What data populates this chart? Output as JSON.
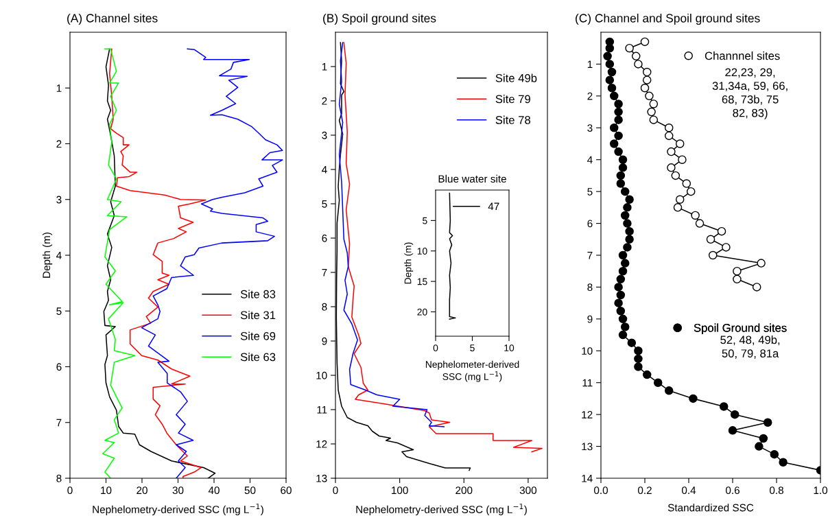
{
  "chart_data": [
    {
      "type": "line",
      "title": "(A) Channel sites",
      "xlabel": "Nephelometry-derived SSC (mg L$^{−1}$)",
      "ylabel": "Depth (m)",
      "xlim": [
        0,
        60
      ],
      "xticks": [
        0,
        10,
        20,
        30,
        40,
        50,
        60
      ],
      "ylim": [
        8,
        0
      ],
      "yticks": [
        1,
        2,
        3,
        4,
        5,
        6,
        7,
        8
      ],
      "legend": "right",
      "line_style": "solid",
      "marker": "none",
      "series": [
        {
          "name": "Site 83",
          "color": "#000000",
          "x": [
            11.0,
            10.4,
            10.0,
            10.7,
            10.4,
            11.3,
            10.4,
            11.3,
            12.3,
            12.6,
            11.3,
            12.3,
            10.4,
            11.6,
            10.4,
            11.3,
            10.4,
            10.7,
            9.4,
            9.7,
            12.6,
            10.0,
            10.4,
            9.7,
            10.0,
            11.0,
            12.9,
            13.5,
            14.8,
            18.0,
            19.3,
            22.5,
            28.2,
            37.1,
            40.3,
            38.4
          ],
          "values": [
            0.3,
            0.49,
            0.62,
            0.95,
            1.23,
            1.4,
            1.56,
            1.85,
            2.22,
            2.76,
            3.04,
            3.29,
            3.62,
            3.86,
            4.19,
            4.44,
            4.65,
            4.81,
            5.01,
            5.26,
            5.28,
            5.43,
            5.8,
            5.96,
            6.29,
            6.54,
            6.78,
            7.07,
            7.19,
            7.21,
            7.4,
            7.52,
            7.69,
            7.81,
            7.91,
            8.0
          ]
        },
        {
          "name": "Site 31",
          "color": "#ff0000",
          "x": [
            11.6,
            11.0,
            11.6,
            12.0,
            11.3,
            12.9,
            14.8,
            14.8,
            16.4,
            14.1,
            14.8,
            14.5,
            16.7,
            18.6,
            16.4,
            13.2,
            12.9,
            16.7,
            26.3,
            30.7,
            37.7,
            33.2,
            30.1,
            30.7,
            34.2,
            30.1,
            32.3,
            28.8,
            24.4,
            23.1,
            25.6,
            25.6,
            27.5,
            24.4,
            27.5,
            23.1,
            21.8,
            24.4,
            21.2,
            22.4,
            16.7,
            16.7,
            19.9,
            24.4,
            28.2,
            33.3,
            28.2,
            32.0,
            23.1,
            23.1,
            25.0,
            23.7,
            25.6,
            26.9,
            29.5,
            32.6,
            30.7,
            36.4,
            34.5,
            31.4,
            31.4
          ],
          "values": [
            0.3,
            0.74,
            1.15,
            1.56,
            1.73,
            1.81,
            1.89,
            2.02,
            2.02,
            2.14,
            2.22,
            2.38,
            2.51,
            2.51,
            2.59,
            2.61,
            2.76,
            2.84,
            2.92,
            3.0,
            3.01,
            3.08,
            3.12,
            3.33,
            3.41,
            3.52,
            3.58,
            3.7,
            3.78,
            3.99,
            4.11,
            4.32,
            4.36,
            4.44,
            4.52,
            4.65,
            4.77,
            4.93,
            5.1,
            5.22,
            5.34,
            5.59,
            5.8,
            5.88,
            6.04,
            6.17,
            6.31,
            6.31,
            6.37,
            6.58,
            6.7,
            6.86,
            7.03,
            7.19,
            7.4,
            7.6,
            7.69,
            7.81,
            7.89,
            7.97,
            8.0
          ]
        },
        {
          "name": "Site 69",
          "color": "#0000ff",
          "x": [
            32.6,
            34.5,
            37.7,
            37.1,
            49.8,
            45.4,
            44.7,
            41.5,
            49.2,
            44.1,
            46.6,
            43.4,
            46.0,
            42.2,
            39.0,
            42.2,
            46.6,
            50.4,
            52.4,
            54.3,
            57.5,
            59.0,
            55.5,
            53.3,
            59.0,
            56.2,
            57.5,
            52.4,
            53.6,
            48.5,
            42.2,
            39.6,
            36.5,
            39.6,
            39.0,
            42.2,
            53.6,
            54.9,
            51.7,
            51.7,
            56.8,
            54.9,
            42.2,
            35.8,
            34.5,
            32.0,
            30.7,
            34.3,
            28.2,
            26.9,
            23.1,
            24.4,
            25.0,
            24.4,
            19.9,
            23.7,
            21.8,
            27.5,
            24.4,
            27.0,
            27.0,
            30.7,
            32.6,
            29.5,
            32.0,
            30.1,
            34.2,
            29.5,
            32.3,
            30.1,
            32.0,
            29.5
          ],
          "values": [
            0.3,
            0.31,
            0.45,
            0.49,
            0.49,
            0.54,
            0.66,
            0.78,
            0.79,
            0.86,
            0.99,
            1.15,
            1.28,
            1.4,
            1.49,
            1.48,
            1.56,
            1.69,
            1.81,
            1.93,
            2.02,
            2.12,
            2.16,
            2.29,
            2.29,
            2.39,
            2.51,
            2.63,
            2.76,
            2.88,
            2.96,
            3.0,
            3.08,
            3.17,
            3.21,
            3.25,
            3.33,
            3.39,
            3.45,
            3.58,
            3.66,
            3.74,
            3.78,
            3.87,
            3.99,
            4.03,
            4.19,
            4.36,
            4.4,
            4.6,
            4.73,
            4.89,
            5.01,
            5.14,
            5.3,
            5.43,
            5.63,
            5.9,
            5.92,
            6.12,
            6.29,
            6.45,
            6.62,
            6.86,
            7.03,
            7.19,
            7.32,
            7.4,
            7.52,
            7.69,
            7.81,
            8.0
          ]
        },
        {
          "name": "Site 63",
          "color": "#00ff00",
          "x": [
            9.7,
            11.3,
            12.9,
            11.0,
            13.5,
            11.3,
            12.9,
            11.0,
            11.6,
            10.7,
            12.9,
            10.4,
            14.2,
            10.4,
            15.8,
            11.0,
            9.7,
            12.6,
            10.0,
            14.5,
            11.0,
            14.8,
            10.7,
            12.6,
            12.3,
            18.0,
            12.3,
            11.3,
            12.9,
            14.5,
            12.3,
            13.5,
            9.7,
            12.3,
            9.1,
            12.3,
            9.7,
            11.3
          ],
          "values": [
            0.3,
            0.3,
            0.7,
            0.91,
            0.91,
            1.15,
            1.4,
            1.65,
            1.97,
            2.38,
            2.63,
            3.0,
            3.04,
            3.29,
            3.31,
            3.54,
            4.03,
            4.28,
            4.52,
            4.83,
            4.89,
            4.85,
            5.14,
            5.51,
            5.71,
            5.8,
            5.92,
            6.33,
            6.54,
            6.74,
            6.95,
            7.19,
            7.32,
            7.36,
            7.56,
            7.64,
            7.89,
            8.0
          ]
        }
      ]
    },
    {
      "type": "line",
      "title": "(B) Spoil ground sites",
      "xlabel": "Nephelometry-derived SSC (mg L$^{−1}$)",
      "xlim": [
        0,
        330
      ],
      "xticks": [
        0,
        100,
        200,
        300
      ],
      "ylim": [
        13,
        0
      ],
      "yticks": [
        1,
        2,
        3,
        4,
        5,
        6,
        7,
        8,
        9,
        10,
        11,
        12,
        13
      ],
      "legend": "top right",
      "line_style": "solid",
      "marker": "none",
      "series": [
        {
          "name": "Site 49b",
          "color": "#000000",
          "x": [
            7.8,
            9.6,
            7.8,
            13.1,
            9.6,
            9.6,
            6.0,
            11.3,
            7.8,
            6.0,
            4.3,
            6.0,
            2.5,
            2.5,
            1.8,
            1.4,
            2.5,
            4.3,
            9.6,
            18.4,
            32.6,
            50.4,
            57.4,
            68.1,
            85.8,
            78.7,
            96.5,
            121.3,
            103.5,
            110.6,
            146.1,
            170.9,
            209.9,
            208.2
          ],
          "values": [
            0.3,
            0.83,
            1.5,
            1.73,
            1.83,
            2.37,
            2.57,
            2.97,
            3.57,
            3.97,
            4.5,
            4.9,
            5.57,
            6.37,
            7.17,
            8.3,
            9.63,
            10.43,
            10.9,
            11.23,
            11.37,
            11.47,
            11.63,
            11.77,
            11.83,
            11.9,
            11.97,
            12.17,
            12.23,
            12.37,
            12.57,
            12.7,
            12.7,
            12.77
          ]
        },
        {
          "name": "Site 79",
          "color": "#ff0000",
          "x": [
            13.1,
            16.7,
            14.9,
            18.4,
            16.7,
            22.0,
            16.7,
            22.0,
            19.9,
            29.1,
            27.3,
            25.5,
            36.2,
            39.7,
            29.1,
            39.7,
            43.3,
            50.4,
            36.2,
            30.9,
            75.2,
            139.0,
            146.1,
            149.6,
            178.0,
            146.1,
            156.7,
            245.4,
            245.4,
            305.7,
            277.3,
            321.6,
            305.7
          ],
          "values": [
            0.3,
            0.9,
            1.83,
            2.9,
            3.83,
            4.43,
            5.17,
            6.17,
            6.83,
            7.4,
            7.8,
            8.3,
            8.83,
            9.07,
            9.37,
            9.77,
            10.23,
            10.43,
            10.57,
            10.7,
            10.83,
            11.03,
            11.1,
            11.3,
            11.37,
            11.5,
            11.7,
            11.7,
            11.9,
            11.9,
            12.1,
            12.13,
            12.23
          ]
        },
        {
          "name": "Site 78",
          "color": "#0000ff",
          "x": [
            11.3,
            7.8,
            9.6,
            6.0,
            11.3,
            6.0,
            9.6,
            11.3,
            13.1,
            18.4,
            19.9,
            14.9,
            18.4,
            13.1,
            25.5,
            34.4,
            27.3,
            22.0,
            23.8,
            46.8,
            64.5,
            100.0,
            89.4,
            142.6,
            139.0,
            149.6,
            146.1,
            169.1
          ],
          "values": [
            0.3,
            0.83,
            1.43,
            2.1,
            2.63,
            3.57,
            4.37,
            5.17,
            6.03,
            6.43,
            6.83,
            7.23,
            7.63,
            8.1,
            8.5,
            8.97,
            9.37,
            9.83,
            10.27,
            10.43,
            10.57,
            10.7,
            10.9,
            11.0,
            11.17,
            11.37,
            11.47,
            11.5
          ]
        }
      ]
    },
    {
      "type": "line",
      "title": "Blue water site",
      "xlabel": "Nephelometer-derived\nSSC (mg L$^{−1}$)",
      "ylabel": "Depth (m)",
      "xlim": [
        0,
        10
      ],
      "xticks": [
        0,
        5,
        10
      ],
      "ylim": [
        24,
        0
      ],
      "yticks": [
        5,
        10,
        15,
        20
      ],
      "legend": "top right",
      "line_style": "solid",
      "marker": "none",
      "series": [
        {
          "name": "47",
          "color": "#000000",
          "x": [
            1.9,
            2.0,
            1.9,
            2.3,
            1.9,
            2.2,
            1.9,
            2.1,
            1.9,
            2.0,
            1.9,
            1.9,
            2.7,
            1.9
          ],
          "values": [
            0.5,
            5,
            7,
            7.5,
            8,
            9,
            10,
            12,
            14,
            16,
            18,
            20.8,
            21.0,
            21.2
          ]
        }
      ]
    },
    {
      "type": "line",
      "title": "(C) Channel and Spoil ground sites",
      "xlabel": "Standardized SSC",
      "xlim": [
        0,
        1
      ],
      "xticks": [
        {
          "value": 0,
          "label": "0.0"
        },
        0.2,
        0.4,
        0.6,
        0.8,
        {
          "value": 1,
          "label": "1.0"
        }
      ],
      "ylim": [
        14,
        0
      ],
      "yticks": [
        1,
        2,
        3,
        4,
        5,
        6,
        7,
        8,
        9,
        10,
        11,
        12,
        13,
        14
      ],
      "legend": "right",
      "line_style": "solid",
      "marker": "circle",
      "annotations": [
        "22,23, 29,\n31,34a, 59, 66,\n68, 73b, 75\n82, 83)",
        "52, 48, 49b,\n50, 79, 81a"
      ],
      "series": [
        {
          "name": "Channnel sites",
          "color": "#000000",
          "colors": [
            "#ffffff",
            "#ffffff",
            "#ffffff",
            "#ffffff",
            "#ffffff",
            "#ffffff",
            "#ffffff",
            "#ffffff",
            "#ffffff",
            "#ffffff",
            "#ffffff",
            "#ffffff",
            "#ffffff",
            "#ffffff",
            "#ffffff",
            "#ffffff",
            "#ffffff",
            "#ffffff",
            "#ffffff",
            "#ffffff",
            "#ffffff",
            "#ffffff",
            "#ffffff",
            "#ffffff",
            "#ffffff",
            "#ffffff",
            "#ffffff",
            "#ffffff",
            "#ffffff",
            "#ffffff",
            "#ffffff",
            "#ffffff"
          ],
          "x": [
            0.2,
            0.13,
            0.16,
            0.17,
            0.21,
            0.21,
            0.2,
            0.22,
            0.24,
            0.23,
            0.24,
            0.31,
            0.31,
            0.36,
            0.32,
            0.37,
            0.32,
            0.34,
            0.39,
            0.41,
            0.36,
            0.35,
            0.43,
            0.45,
            0.55,
            0.5,
            0.57,
            0.51,
            0.73,
            0.62,
            0.62,
            0.71
          ],
          "values": [
            0.3,
            0.5,
            0.75,
            1.0,
            1.25,
            1.5,
            1.75,
            2.0,
            2.25,
            2.5,
            2.75,
            3.0,
            3.25,
            3.5,
            3.75,
            4.0,
            4.25,
            4.5,
            4.75,
            5.0,
            5.25,
            5.5,
            5.75,
            6.0,
            6.25,
            6.5,
            6.75,
            7.0,
            7.25,
            7.5,
            7.75,
            8.0
          ]
        },
        {
          "name": "Spoil Ground sites",
          "color": "#000000",
          "x": [
            0.04,
            0.04,
            0.03,
            0.04,
            0.05,
            0.04,
            0.05,
            0.06,
            0.08,
            0.08,
            0.08,
            0.06,
            0.08,
            0.06,
            0.08,
            0.1,
            0.1,
            0.09,
            0.09,
            0.11,
            0.13,
            0.12,
            0.11,
            0.12,
            0.13,
            0.13,
            0.12,
            0.1,
            0.11,
            0.1,
            0.09,
            0.08,
            0.09,
            0.08,
            0.09,
            0.1,
            0.11,
            0.1,
            0.14,
            0.17,
            0.17,
            0.17,
            0.21,
            0.26,
            0.31,
            0.42,
            0.56,
            0.61,
            0.76,
            0.6,
            0.74,
            0.72,
            0.79,
            0.83,
            1.0
          ],
          "values": [
            0.3,
            0.5,
            0.75,
            1.0,
            1.25,
            1.5,
            1.75,
            2.0,
            2.25,
            2.5,
            2.75,
            3.0,
            3.25,
            3.5,
            3.75,
            4.0,
            4.25,
            4.5,
            4.75,
            5.0,
            5.25,
            5.5,
            5.75,
            6.0,
            6.25,
            6.5,
            6.75,
            7.0,
            7.25,
            7.5,
            7.75,
            8.0,
            8.25,
            8.5,
            8.75,
            9.0,
            9.25,
            9.5,
            9.75,
            10.0,
            10.25,
            10.5,
            10.75,
            11.0,
            11.25,
            11.5,
            11.75,
            12.0,
            12.25,
            12.5,
            12.75,
            13.0,
            13.25,
            13.5,
            13.75
          ]
        }
      ]
    }
  ]
}
